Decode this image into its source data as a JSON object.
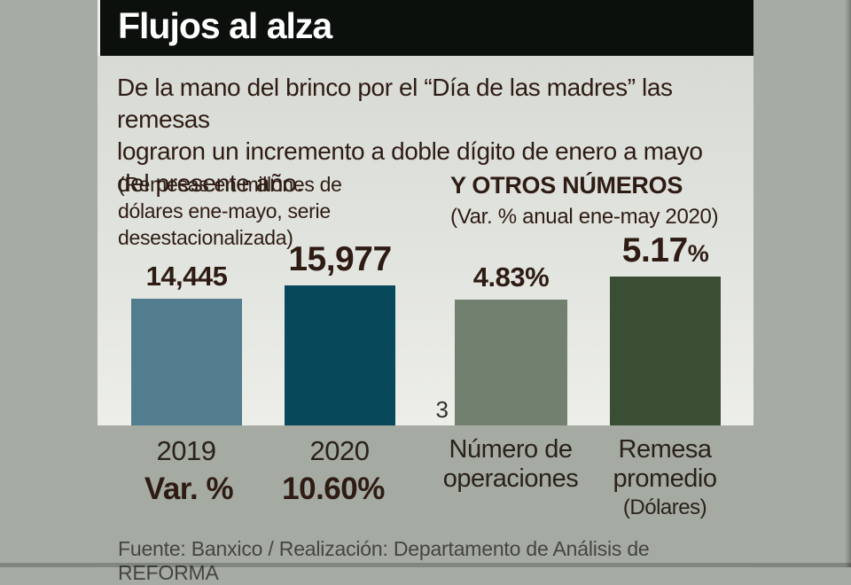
{
  "header": {
    "title": "Flujos al alza"
  },
  "intro_text": "De la mano del brinco por el “Día de las madres” las remesas\nlograron un incremento a doble dígito de enero a mayo\ndel presente año.",
  "footer": "Fuente: Banxico / Realización: Departamento de Análisis de REFORMA",
  "colors": {
    "page_bg": "#a6aca4",
    "titlebar_bg": "#0c100d",
    "panel_top": "#d8dad5",
    "panel_bottom": "#edeee9",
    "band_bg": "#a5aba3",
    "text_dark": "#2e1c14",
    "bar_colors": [
      [
        "#527d8f",
        "#07485a"
      ],
      [
        "#72816f",
        "#3a4e33"
      ]
    ]
  },
  "chart_data": [
    {
      "type": "bar",
      "title": "(Remesas en millones de\ndólares ene-mayo, serie\ndesestacionalizada)",
      "categories": [
        "2019",
        "2020"
      ],
      "values": [
        14445,
        15977
      ],
      "value_labels": [
        "14,445",
        "15,977"
      ],
      "ylim": [
        0,
        15977
      ],
      "grid": false,
      "legend": "none",
      "summary_row": {
        "label": "Var. %",
        "value": "10.60%"
      }
    },
    {
      "type": "bar",
      "title": "Y OTROS NÚMEROS",
      "subtitle": "(Var. % anual ene-may 2020)",
      "categories": [
        "Número de\noperaciones",
        "Remesa\npromedio"
      ],
      "category_note": "(Dólares)",
      "values": [
        4.83,
        5.17
      ],
      "value_labels": [
        "4.83%",
        "5.17"
      ],
      "value_label_suffix": "%",
      "axis_min_label": "3",
      "ylim": [
        3,
        5.17
      ],
      "grid": false,
      "legend": "none"
    }
  ]
}
